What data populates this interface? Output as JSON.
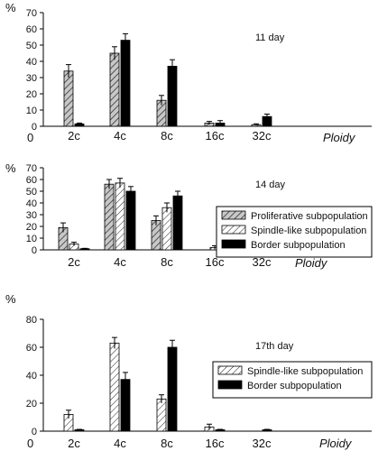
{
  "colors": {
    "proliferative_fill": "#c8c8c8",
    "spindle_fill": "#ffffff",
    "border_fill": "#000000",
    "axis": "#000000",
    "error_bar": "#000000"
  },
  "chart_data": [
    {
      "type": "bar",
      "annotation": "11 day",
      "ylabel": "%",
      "xlabel": "Ploidy",
      "x_origin_label": "0",
      "categories": [
        "2c",
        "4c",
        "8c",
        "16c",
        "32c"
      ],
      "ylim": [
        0,
        70
      ],
      "yticks": [
        0,
        10,
        20,
        30,
        40,
        50,
        60,
        70
      ],
      "legend": null,
      "series": [
        {
          "key": "proliferative",
          "values": [
            34,
            45,
            16,
            2,
            1
          ],
          "errors": [
            4,
            4,
            3,
            1,
            0.5
          ]
        },
        {
          "key": "border",
          "values": [
            1.5,
            53,
            37,
            2,
            6
          ],
          "errors": [
            0.5,
            4,
            4,
            1.5,
            1.5
          ]
        }
      ]
    },
    {
      "type": "bar",
      "annotation": "14 day",
      "ylabel": "%",
      "xlabel": "Ploidy",
      "categories": [
        "2c",
        "4c",
        "8c",
        "16c",
        "32c"
      ],
      "ylim": [
        0,
        70
      ],
      "yticks": [
        0,
        10,
        20,
        30,
        40,
        50,
        60,
        70
      ],
      "legend": {
        "position": "right",
        "entries": [
          {
            "key": "proliferative",
            "label": "Proliferative subpopulation"
          },
          {
            "key": "spindle",
            "label": "Spindle-like subpopulation"
          },
          {
            "key": "border",
            "label": "Border subpopulation"
          }
        ]
      },
      "series": [
        {
          "key": "proliferative",
          "values": [
            19,
            56,
            25,
            0,
            0
          ],
          "errors": [
            4,
            4,
            4,
            0,
            0
          ]
        },
        {
          "key": "spindle",
          "values": [
            5,
            57,
            36,
            2,
            0
          ],
          "errors": [
            1.5,
            4,
            4,
            1.5,
            0
          ]
        },
        {
          "key": "border",
          "values": [
            1,
            50,
            46,
            3,
            0
          ],
          "errors": [
            0.3,
            4,
            4,
            1.5,
            0
          ]
        }
      ]
    },
    {
      "type": "bar",
      "annotation": "17th day",
      "ylabel": "%",
      "xlabel": "Ploidy",
      "x_origin_label": "0",
      "categories": [
        "2c",
        "4c",
        "8c",
        "16c",
        "32c"
      ],
      "ylim": [
        0,
        80
      ],
      "yticks": [
        0,
        20,
        40,
        60,
        80
      ],
      "legend": {
        "position": "right",
        "entries": [
          {
            "key": "spindle",
            "label": "Spindle-like subpopulation"
          },
          {
            "key": "border",
            "label": "Border subpopulation"
          }
        ]
      },
      "series": [
        {
          "key": "spindle",
          "values": [
            12,
            63,
            23,
            3,
            0
          ],
          "errors": [
            3,
            4,
            3,
            2,
            0
          ]
        },
        {
          "key": "border",
          "values": [
            1,
            37,
            60,
            1,
            1
          ],
          "errors": [
            0.3,
            5,
            5,
            0.3,
            0.3
          ]
        }
      ]
    }
  ]
}
